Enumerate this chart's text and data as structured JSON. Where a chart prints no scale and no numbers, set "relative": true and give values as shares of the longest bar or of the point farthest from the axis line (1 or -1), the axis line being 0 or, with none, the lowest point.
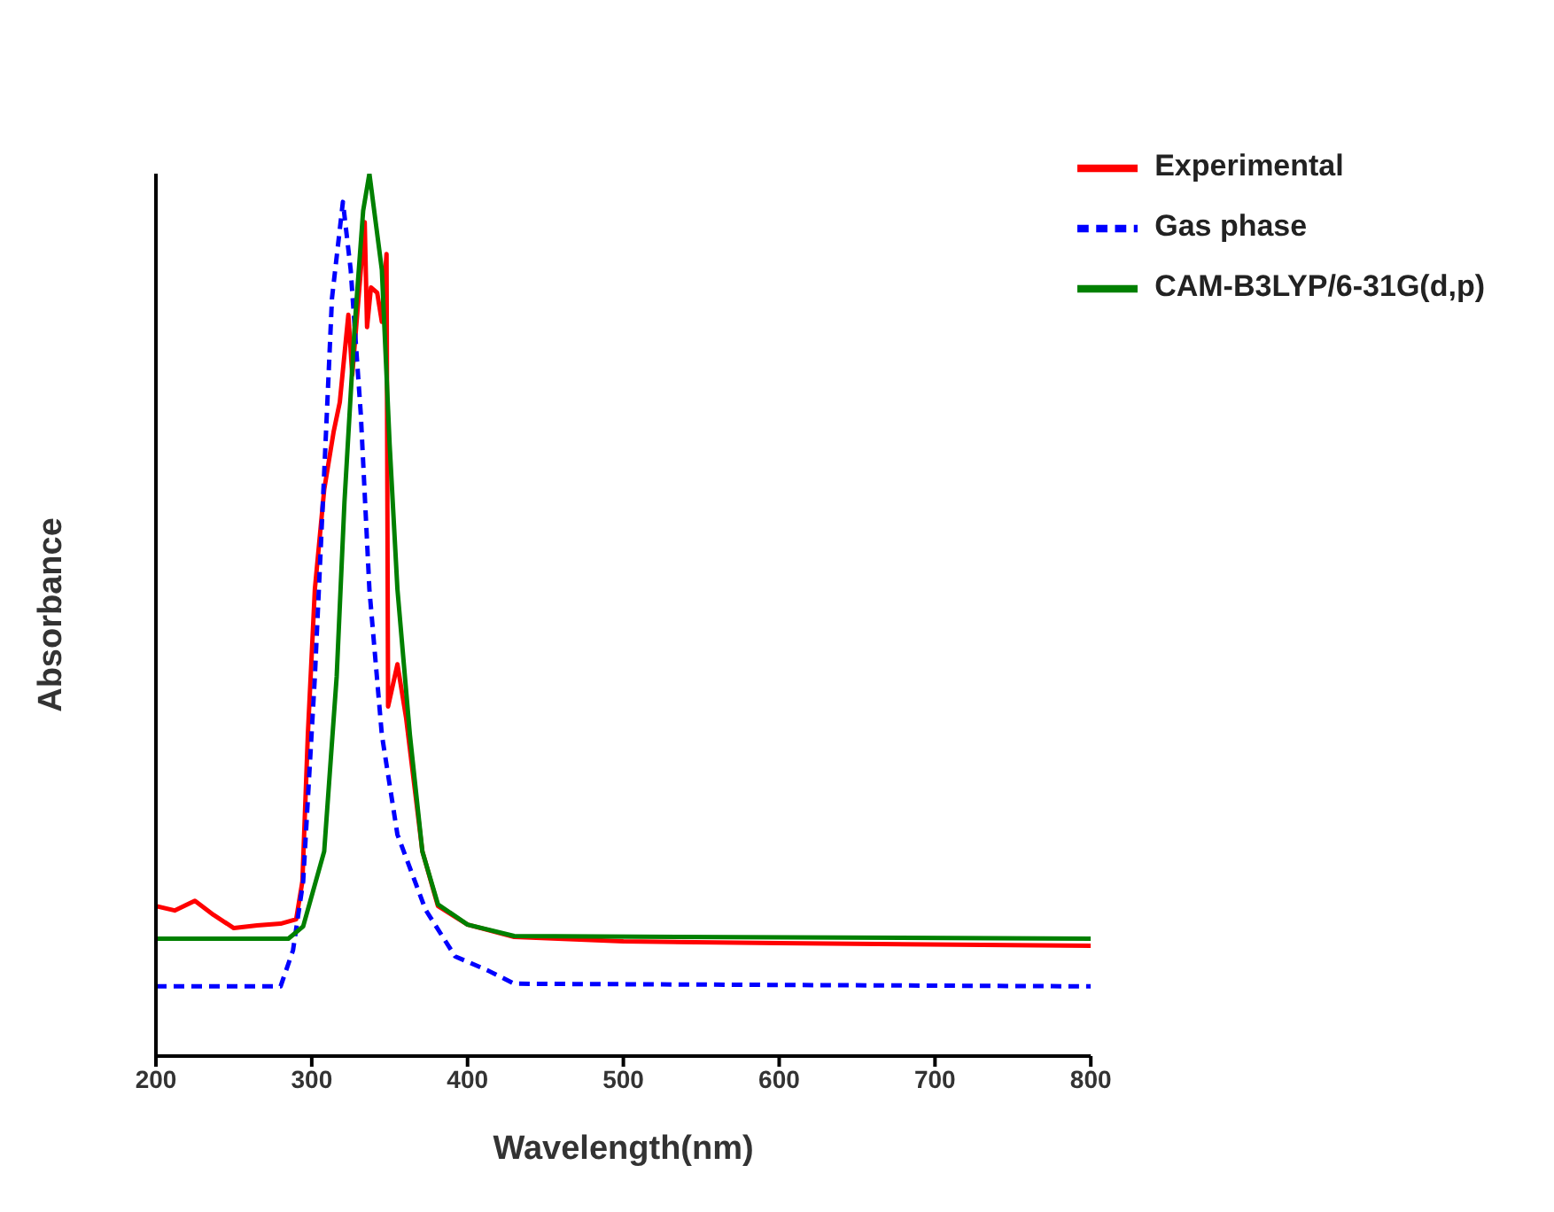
{
  "chart_data": {
    "type": "line",
    "relative": true,
    "xlabel": "Wavelength(nm)",
    "ylabel": "Absorbance",
    "xlim": [
      200,
      800
    ],
    "xticks": [
      200,
      300,
      400,
      500,
      600,
      700,
      800
    ],
    "legend": "top right",
    "grid": false,
    "marker": "none",
    "series": [
      {
        "name": "Experimental",
        "color": "#ff0000",
        "line_style": "solid",
        "x": [
          200,
          212,
          225,
          237,
          250,
          265,
          280,
          290,
          294,
          297.5,
          302,
          308,
          314,
          318,
          323.5,
          326,
          331.5,
          334,
          335.5,
          338,
          342,
          345,
          346.5,
          348,
          349,
          355,
          360.5,
          371,
          381,
          400,
          430,
          500,
          600,
          800
        ],
        "values": [
          0.17,
          0.165,
          0.176,
          0.16,
          0.145,
          0.148,
          0.15,
          0.155,
          0.198,
          0.364,
          0.529,
          0.642,
          0.707,
          0.741,
          0.84,
          0.772,
          0.891,
          0.945,
          0.826,
          0.871,
          0.865,
          0.832,
          0.871,
          0.909,
          0.396,
          0.444,
          0.384,
          0.232,
          0.17,
          0.149,
          0.135,
          0.13,
          0.128,
          0.125
        ]
      },
      {
        "name": "Gas phase",
        "color": "#0000ff",
        "line_style": "dashed",
        "x": [
          200,
          280,
          288,
          294.5,
          302,
          308,
          313,
          320,
          325,
          331.5,
          337,
          345,
          355,
          373,
          392,
          413,
          430,
          800
        ],
        "values": [
          0.079,
          0.079,
          0.12,
          0.198,
          0.43,
          0.661,
          0.859,
          0.968,
          0.891,
          0.727,
          0.529,
          0.364,
          0.251,
          0.166,
          0.113,
          0.097,
          0.082,
          0.079
        ]
      },
      {
        "name": "CAM-B3LYP/6-31G(d,p)",
        "color": "#008000",
        "line_style": "solid",
        "x": [
          200,
          285,
          294.5,
          308,
          316,
          321,
          327.5,
          333,
          337,
          345,
          350,
          355,
          363,
          371,
          381,
          400,
          430,
          800
        ],
        "values": [
          0.133,
          0.133,
          0.147,
          0.232,
          0.43,
          0.628,
          0.826,
          0.958,
          1,
          0.891,
          0.693,
          0.529,
          0.364,
          0.232,
          0.172,
          0.149,
          0.136,
          0.133
        ]
      }
    ]
  }
}
